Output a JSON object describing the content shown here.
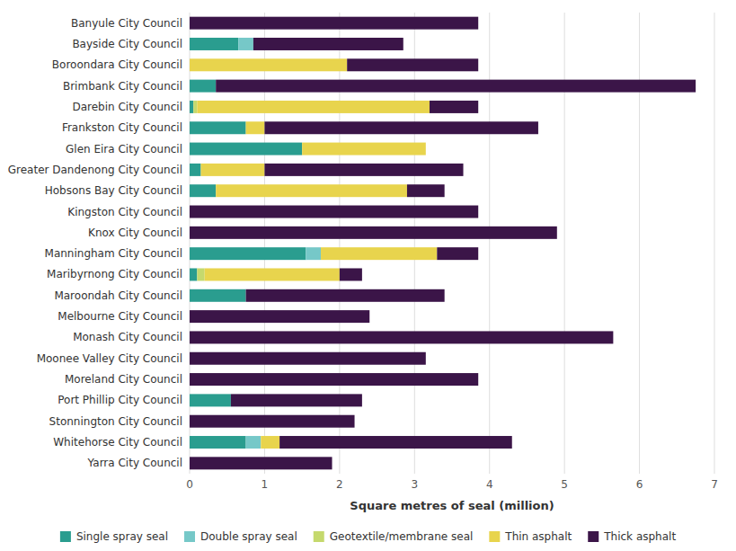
{
  "chart_data": {
    "type": "bar",
    "orientation": "horizontal",
    "stacked": true,
    "categories": [
      "Banyule City Council",
      "Bayside City Council",
      "Boroondara City Council",
      "Brimbank City Council",
      "Darebin City Council",
      "Frankston City Council",
      "Glen Eira City Council",
      "Greater Dandenong City Council",
      "Hobsons Bay City Council",
      "Kingston City Council",
      "Knox City Council",
      "Manningham City Council",
      "Maribyrnong City Council",
      "Maroondah City Council",
      "Melbourne City Council",
      "Monash City Council",
      "Moonee Valley City Council",
      "Moreland City Council",
      "Port Phillip City Council",
      "Stonnington City Council",
      "Whitehorse City Council",
      "Yarra City Council"
    ],
    "series": [
      {
        "name": "Single spray seal",
        "color": "#2a9d8f",
        "values": [
          0.0,
          0.65,
          0.0,
          0.35,
          0.05,
          0.75,
          1.5,
          0.15,
          0.35,
          0.0,
          0.0,
          1.55,
          0.1,
          0.75,
          0.0,
          0.0,
          0.0,
          0.0,
          0.55,
          0.0,
          0.75,
          0.0
        ]
      },
      {
        "name": "Double spray seal",
        "color": "#76c8c8",
        "values": [
          0.0,
          0.2,
          0.0,
          0.0,
          0.0,
          0.0,
          0.0,
          0.0,
          0.0,
          0.0,
          0.0,
          0.2,
          0.0,
          0.0,
          0.0,
          0.0,
          0.0,
          0.0,
          0.0,
          0.0,
          0.2,
          0.0
        ]
      },
      {
        "name": "Geotextile/membrane seal",
        "color": "#c5d96d",
        "values": [
          0.0,
          0.0,
          0.0,
          0.0,
          0.05,
          0.0,
          0.0,
          0.0,
          0.0,
          0.0,
          0.0,
          0.0,
          0.1,
          0.0,
          0.0,
          0.0,
          0.0,
          0.0,
          0.0,
          0.0,
          0.0,
          0.0
        ]
      },
      {
        "name": "Thin asphalt",
        "color": "#e8d44d",
        "values": [
          0.0,
          0.0,
          2.1,
          0.0,
          3.1,
          0.25,
          1.65,
          0.85,
          2.55,
          0.0,
          0.0,
          1.55,
          1.8,
          0.0,
          0.0,
          0.0,
          0.0,
          0.0,
          0.0,
          0.0,
          0.25,
          0.0
        ]
      },
      {
        "name": "Thick asphalt",
        "color": "#3b1548",
        "values": [
          3.85,
          2.0,
          1.75,
          6.4,
          0.65,
          3.65,
          0.0,
          2.65,
          0.5,
          3.85,
          4.9,
          0.55,
          0.3,
          2.65,
          2.4,
          5.65,
          3.15,
          3.85,
          1.75,
          2.2,
          3.1,
          1.9
        ]
      }
    ],
    "xlabel": "Square metres of seal (million)",
    "xlim": [
      0,
      7
    ],
    "xticks": [
      0,
      1,
      2,
      3,
      4,
      5,
      6,
      7
    ],
    "grid": true,
    "legend": "bottom"
  }
}
